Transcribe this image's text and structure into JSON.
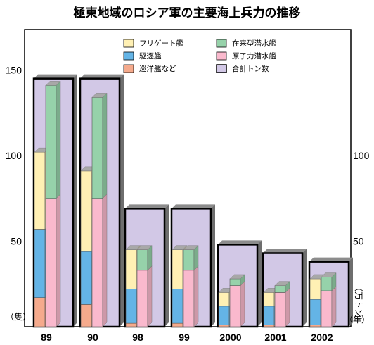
{
  "chart_data": {
    "type": "bar",
    "title": "極東地域のロシア軍の主要海上兵力の推移",
    "categories": [
      "89",
      "90",
      "98",
      "99",
      "2000",
      "2001",
      "2002"
    ],
    "x_unit": "（年）",
    "left_axis": {
      "unit": "（隻）",
      "ticks": [
        "50",
        "100",
        "150"
      ],
      "range": [
        0,
        175
      ]
    },
    "right_axis": {
      "unit": "（万トン）",
      "ticks": [
        "50",
        "100"
      ],
      "range": [
        0,
        175
      ]
    },
    "grid": false,
    "legend_position": "top",
    "legend": {
      "frigate": "フリゲート艦",
      "destroyer": "駆逐艦",
      "patrol": "巡洋艦など",
      "diesel_sub": "在来型潜水艦",
      "nuclear_sub": "原子力潜水艦",
      "total_tonnage": "合計トン数"
    },
    "colors": {
      "frigate": "#fff0b4",
      "destroyer": "#64b4e6",
      "patrol": "#f5aa8c",
      "diesel_sub": "#96d2aa",
      "nuclear_sub": "#fab9cd",
      "total_tonnage": "#d2c8e6"
    },
    "ship_stack": [
      {
        "year": "89",
        "patrol": 17,
        "destroyer": 40,
        "frigate": 45
      },
      {
        "year": "90",
        "patrol": 13,
        "destroyer": 31,
        "frigate": 47
      },
      {
        "year": "98",
        "patrol": 2,
        "destroyer": 20,
        "frigate": 23
      },
      {
        "year": "99",
        "patrol": 2,
        "destroyer": 20,
        "frigate": 23
      },
      {
        "year": "2000",
        "patrol": 1,
        "destroyer": 11,
        "frigate": 8
      },
      {
        "year": "2001",
        "patrol": 1,
        "destroyer": 11,
        "frigate": 8
      },
      {
        "year": "2002",
        "patrol": 1,
        "destroyer": 15,
        "frigate": 12
      }
    ],
    "sub_stack": [
      {
        "year": "89",
        "nuclear_sub": 75,
        "diesel_sub": 66
      },
      {
        "year": "90",
        "nuclear_sub": 75,
        "diesel_sub": 59
      },
      {
        "year": "98",
        "nuclear_sub": 33,
        "diesel_sub": 12
      },
      {
        "year": "99",
        "nuclear_sub": 33,
        "diesel_sub": 12
      },
      {
        "year": "2000",
        "nuclear_sub": 24,
        "diesel_sub": 4
      },
      {
        "year": "2001",
        "nuclear_sub": 20,
        "diesel_sub": 4
      },
      {
        "year": "2002",
        "nuclear_sub": 21,
        "diesel_sub": 8
      }
    ],
    "total_tonnage": [
      {
        "year": "89",
        "value": 145
      },
      {
        "year": "90",
        "value": 145
      },
      {
        "year": "98",
        "value": 69
      },
      {
        "year": "99",
        "value": 69
      },
      {
        "year": "2000",
        "value": 48
      },
      {
        "year": "2001",
        "value": 43
      },
      {
        "year": "2002",
        "value": 38
      }
    ]
  }
}
